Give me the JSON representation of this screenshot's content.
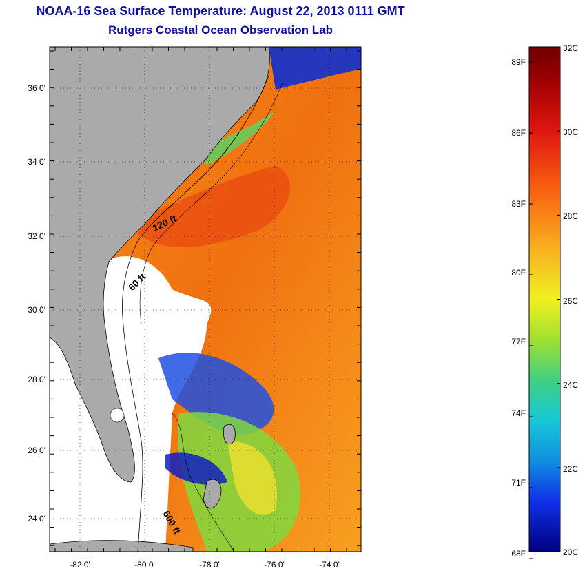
{
  "header": {
    "title": "NOAA-16 Sea Surface Temperature:  August 22, 2013 0111 GMT",
    "subtitle": "Rutgers Coastal Ocean Observation Lab"
  },
  "map": {
    "lat_labels": [
      "36 0'",
      "34 0'",
      "32 0'",
      "30 0'",
      "28 0'",
      "26 0'",
      "24 0'"
    ],
    "lon_labels": [
      "-82 0'",
      "-80 0'",
      "-78 0'",
      "-76 0'",
      "-74 0'"
    ],
    "contour_labels": [
      "120 ft",
      "60 ft",
      "600 ft"
    ],
    "colors": {
      "land": "#aaaaaa",
      "ocean_nodata": "#ffffff"
    }
  },
  "colorbar": {
    "f_labels": [
      "89F",
      "86F",
      "83F",
      "80F",
      "77F",
      "74F",
      "71F",
      "68F"
    ],
    "c_labels": [
      "32C",
      "30C",
      "28C",
      "26C",
      "24C",
      "22C",
      "20C"
    ],
    "range_c": [
      20,
      32
    ],
    "colors": [
      "#700000",
      "#a00000",
      "#d81010",
      "#f03010",
      "#f86010",
      "#f89018",
      "#f8c020",
      "#f0f020",
      "#b8e828",
      "#70d850",
      "#30d0a0",
      "#18c8d8",
      "#1090e0",
      "#1050e8",
      "#1010e0",
      "#000090"
    ]
  }
}
